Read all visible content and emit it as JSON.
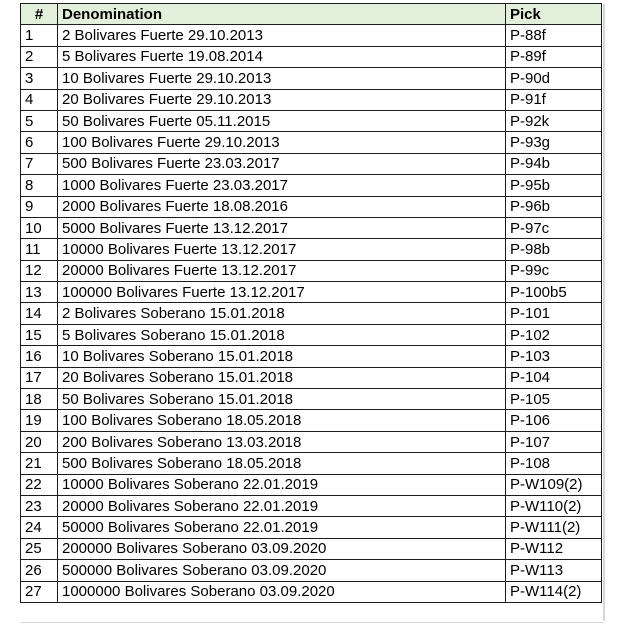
{
  "table": {
    "columns": [
      {
        "label": "#"
      },
      {
        "label": "Denomination"
      },
      {
        "label": "Pick"
      }
    ],
    "rows": [
      {
        "num": "1",
        "denomination": "2 Bolivares Fuerte 29.10.2013",
        "pick": "P-88f"
      },
      {
        "num": "2",
        "denomination": "5 Bolivares Fuerte 19.08.2014",
        "pick": "P-89f"
      },
      {
        "num": "3",
        "denomination": "10 Bolivares Fuerte 29.10.2013",
        "pick": "P-90d"
      },
      {
        "num": "4",
        "denomination": "20 Bolivares Fuerte 29.10.2013",
        "pick": "P-91f"
      },
      {
        "num": "5",
        "denomination": "50 Bolivares Fuerte 05.11.2015",
        "pick": "P-92k"
      },
      {
        "num": "6",
        "denomination": "100 Bolivares Fuerte 29.10.2013",
        "pick": "P-93g"
      },
      {
        "num": "7",
        "denomination": "500 Bolivares Fuerte 23.03.2017",
        "pick": "P-94b"
      },
      {
        "num": "8",
        "denomination": "1000 Bolivares Fuerte 23.03.2017",
        "pick": "P-95b"
      },
      {
        "num": "9",
        "denomination": "2000 Bolivares Fuerte 18.08.2016",
        "pick": "P-96b"
      },
      {
        "num": "10",
        "denomination": "5000 Bolivares Fuerte 13.12.2017",
        "pick": "P-97c"
      },
      {
        "num": "11",
        "denomination": "10000 Bolivares Fuerte 13.12.2017",
        "pick": "P-98b"
      },
      {
        "num": "12",
        "denomination": "20000 Bolivares Fuerte 13.12.2017",
        "pick": "P-99c"
      },
      {
        "num": "13",
        "denomination": "100000 Bolivares Fuerte 13.12.2017",
        "pick": "P-100b5"
      },
      {
        "num": "14",
        "denomination": "2 Bolivares Soberano 15.01.2018",
        "pick": "P-101"
      },
      {
        "num": "15",
        "denomination": "5 Bolivares Soberano 15.01.2018",
        "pick": "P-102"
      },
      {
        "num": "16",
        "denomination": "10 Bolivares Soberano 15.01.2018",
        "pick": "P-103"
      },
      {
        "num": "17",
        "denomination": "20 Bolivares Soberano 15.01.2018",
        "pick": "P-104"
      },
      {
        "num": "18",
        "denomination": "50 Bolivares Soberano 15.01.2018",
        "pick": "P-105"
      },
      {
        "num": "19",
        "denomination": "100 Bolivares Soberano 18.05.2018",
        "pick": "P-106"
      },
      {
        "num": "20",
        "denomination": "200 Bolivares Soberano 13.03.2018",
        "pick": "P-107"
      },
      {
        "num": "21",
        "denomination": "500 Bolivares Soberano 18.05.2018",
        "pick": "P-108"
      },
      {
        "num": "22",
        "denomination": "10000 Bolivares Soberano 22.01.2019",
        "pick": "P-W109(2)"
      },
      {
        "num": "23",
        "denomination": "20000 Bolivares Soberano 22.01.2019",
        "pick": "P-W110(2)"
      },
      {
        "num": "24",
        "denomination": "50000 Bolivares Soberano 22.01.2019",
        "pick": "P-W111(2)"
      },
      {
        "num": "25",
        "denomination": "200000 Bolivares Soberano 03.09.2020",
        "pick": "P-W112"
      },
      {
        "num": "26",
        "denomination": "500000 Bolivares Soberano 03.09.2020",
        "pick": "P-W113"
      },
      {
        "num": "27",
        "denomination": "1000000 Bolivares Soberano 03.09.2020",
        "pick": "P-W114(2)"
      }
    ]
  },
  "colors": {
    "header_bg": "#e2efda",
    "border": "#1c1c1c",
    "gridline": "#d6d6d6",
    "text": "#000000"
  }
}
